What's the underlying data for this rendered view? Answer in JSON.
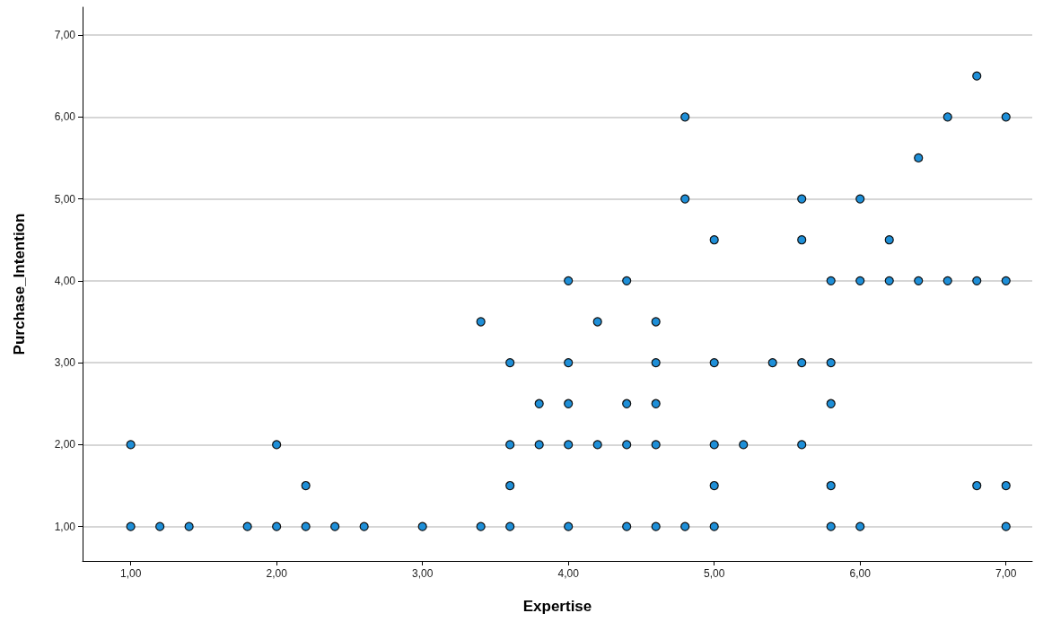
{
  "chart_data": {
    "type": "scatter",
    "xlabel": "Expertise",
    "ylabel": "Purchase_Intention",
    "x": [
      1,
      1,
      1.2,
      1.4,
      1.8,
      2,
      2,
      2.2,
      2.2,
      2.4,
      2.6,
      3,
      3.4,
      3.4,
      3.6,
      3.6,
      3.6,
      3.6,
      3.8,
      3.8,
      4,
      4,
      4,
      4,
      4,
      4.2,
      4.2,
      4.4,
      4.4,
      4.4,
      4.4,
      4.6,
      4.6,
      4.6,
      4.6,
      4.6,
      4.8,
      4.8,
      4.8,
      5,
      5,
      5,
      5,
      5,
      5.2,
      5.4,
      5.6,
      5.6,
      5.6,
      5.6,
      5.8,
      5.8,
      5.8,
      5.8,
      5.8,
      6,
      6,
      6,
      6.2,
      6.2,
      6.4,
      6.4,
      6.6,
      6.6,
      6.8,
      6.8,
      6.8,
      7,
      7,
      7,
      7
    ],
    "values": [
      1,
      2,
      1,
      1,
      1,
      1,
      2,
      1,
      1.5,
      1,
      1,
      1,
      1,
      3.5,
      1,
      1.5,
      2,
      3,
      2,
      2.5,
      1,
      2,
      2.5,
      3,
      4,
      2,
      3.5,
      1,
      2,
      2.5,
      4,
      1,
      2,
      2.5,
      3,
      3.5,
      1,
      5,
      6,
      1,
      1.5,
      2,
      3,
      4.5,
      2,
      3,
      2,
      3,
      4.5,
      5,
      1,
      1.5,
      2.5,
      3,
      4,
      1,
      4,
      5,
      4,
      4.5,
      4,
      5.5,
      4,
      6,
      1.5,
      4,
      6.5,
      1,
      1.5,
      4,
      6
    ],
    "color": "#1e8fd8",
    "marker": "circle",
    "grid": "y",
    "xlim": [
      0.67,
      7.18
    ],
    "ylim": [
      0.58,
      7.34
    ],
    "xticks": [
      {
        "value": 1,
        "label": "1,00"
      },
      {
        "value": 2,
        "label": "2,00"
      },
      {
        "value": 3,
        "label": "3,00"
      },
      {
        "value": 4,
        "label": "4,00"
      },
      {
        "value": 5,
        "label": "5,00"
      },
      {
        "value": 6,
        "label": "6,00"
      },
      {
        "value": 7,
        "label": "7,00"
      }
    ],
    "yticks": [
      {
        "value": 1,
        "label": "1,00"
      },
      {
        "value": 2,
        "label": "2,00"
      },
      {
        "value": 3,
        "label": "3,00"
      },
      {
        "value": 4,
        "label": "4,00"
      },
      {
        "value": 5,
        "label": "5,00"
      },
      {
        "value": 6,
        "label": "6,00"
      },
      {
        "value": 7,
        "label": "7,00"
      }
    ]
  }
}
